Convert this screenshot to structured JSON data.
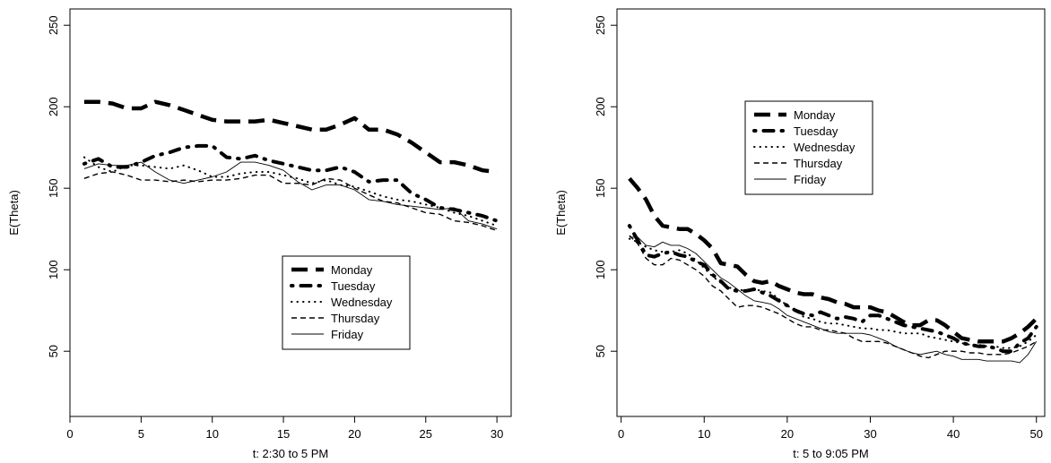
{
  "chart_data": [
    {
      "type": "line",
      "title": "",
      "xlabel": "t: 2:30 to 5 PM",
      "ylabel": "E(Theta)",
      "xlim": [
        0,
        31
      ],
      "ylim": [
        10,
        260
      ],
      "xticks": [
        0,
        5,
        10,
        15,
        20,
        25,
        30
      ],
      "yticks": [
        50,
        100,
        150,
        200,
        250
      ],
      "grid": false,
      "legend_position": "bottom-right",
      "series": [
        {
          "name": "Monday",
          "style": "longdash-thick",
          "x": [
            1,
            2,
            3,
            4,
            5,
            6,
            7,
            8,
            9,
            10,
            11,
            12,
            13,
            14,
            15,
            16,
            17,
            18,
            19,
            20,
            21,
            22,
            23,
            24,
            25,
            26,
            27,
            28,
            29,
            30
          ],
          "y": [
            203,
            203,
            202,
            199,
            199,
            203,
            201,
            198,
            195,
            192,
            191,
            191,
            191,
            192,
            190,
            188,
            186,
            186,
            189,
            193,
            186,
            186,
            183,
            178,
            172,
            166,
            166,
            164,
            161,
            160
          ]
        },
        {
          "name": "Tuesday",
          "style": "dotdash-thick",
          "x": [
            1,
            2,
            3,
            4,
            5,
            6,
            7,
            8,
            9,
            10,
            11,
            12,
            13,
            14,
            15,
            16,
            17,
            18,
            19,
            20,
            21,
            22,
            23,
            24,
            25,
            26,
            27,
            28,
            29,
            30
          ],
          "y": [
            165,
            168,
            163,
            163,
            166,
            170,
            172,
            175,
            176,
            176,
            169,
            168,
            170,
            167,
            165,
            163,
            161,
            161,
            163,
            160,
            154,
            155,
            155,
            147,
            143,
            138,
            137,
            135,
            133,
            130
          ]
        },
        {
          "name": "Wednesday",
          "style": "dotted",
          "x": [
            1,
            2,
            3,
            4,
            5,
            6,
            7,
            8,
            9,
            10,
            11,
            12,
            13,
            14,
            15,
            16,
            17,
            18,
            19,
            20,
            21,
            22,
            23,
            24,
            25,
            26,
            27,
            28,
            29,
            30
          ],
          "y": [
            169,
            163,
            160,
            164,
            164,
            163,
            162,
            164,
            161,
            157,
            157,
            159,
            160,
            160,
            158,
            156,
            153,
            155,
            152,
            151,
            148,
            145,
            143,
            142,
            140,
            138,
            135,
            133,
            130,
            127
          ]
        },
        {
          "name": "Thursday",
          "style": "dashed",
          "x": [
            1,
            2,
            3,
            4,
            5,
            6,
            7,
            8,
            9,
            10,
            11,
            12,
            13,
            14,
            15,
            16,
            17,
            18,
            19,
            20,
            21,
            22,
            23,
            24,
            25,
            26,
            27,
            28,
            29,
            30
          ],
          "y": [
            156,
            159,
            160,
            158,
            155,
            155,
            154,
            155,
            154,
            155,
            155,
            156,
            158,
            158,
            153,
            153,
            152,
            156,
            155,
            150,
            146,
            142,
            141,
            138,
            135,
            134,
            130,
            129,
            127,
            124
          ]
        },
        {
          "name": "Friday",
          "style": "solid-thin",
          "x": [
            1,
            2,
            3,
            4,
            5,
            6,
            7,
            8,
            9,
            10,
            11,
            12,
            13,
            14,
            15,
            16,
            17,
            18,
            19,
            20,
            21,
            22,
            23,
            24,
            25,
            26,
            27,
            28,
            29,
            30
          ],
          "y": [
            162,
            165,
            164,
            164,
            166,
            160,
            155,
            153,
            155,
            157,
            160,
            166,
            166,
            164,
            161,
            154,
            149,
            152,
            152,
            149,
            143,
            142,
            140,
            139,
            138,
            137,
            138,
            130,
            128,
            125
          ]
        }
      ]
    },
    {
      "type": "line",
      "title": "",
      "xlabel": "t: 5 to 9:05 PM",
      "ylabel": "E(Theta)",
      "xlim": [
        -0.5,
        51
      ],
      "ylim": [
        10,
        260
      ],
      "xticks": [
        0,
        10,
        20,
        30,
        40,
        50
      ],
      "yticks": [
        50,
        100,
        150,
        200,
        250
      ],
      "grid": false,
      "legend_position": "top-left",
      "series": [
        {
          "name": "Monday",
          "style": "longdash-thick",
          "x": [
            1,
            2,
            3,
            4,
            5,
            6,
            7,
            8,
            9,
            10,
            11,
            12,
            13,
            14,
            15,
            16,
            17,
            18,
            19,
            20,
            21,
            22,
            23,
            24,
            25,
            26,
            27,
            28,
            29,
            30,
            31,
            32,
            33,
            34,
            35,
            36,
            37,
            38,
            39,
            40,
            41,
            42,
            43,
            44,
            45,
            46,
            47,
            48,
            49,
            50
          ],
          "y": [
            156,
            150,
            143,
            133,
            127,
            126,
            125,
            125,
            122,
            118,
            113,
            104,
            103,
            102,
            97,
            93,
            92,
            93,
            90,
            88,
            86,
            85,
            85,
            83,
            82,
            80,
            79,
            77,
            77,
            77,
            75,
            74,
            71,
            68,
            66,
            66,
            69,
            69,
            66,
            62,
            58,
            57,
            56,
            56,
            56,
            56,
            58,
            61,
            65,
            70
          ]
        },
        {
          "name": "Tuesday",
          "style": "dotdash-thick",
          "x": [
            1,
            2,
            3,
            4,
            5,
            6,
            7,
            8,
            9,
            10,
            11,
            12,
            13,
            14,
            15,
            16,
            17,
            18,
            19,
            20,
            21,
            22,
            23,
            24,
            25,
            26,
            27,
            28,
            29,
            30,
            31,
            32,
            33,
            34,
            35,
            36,
            37,
            38,
            39,
            40,
            41,
            42,
            43,
            44,
            45,
            46,
            47,
            48,
            49,
            50
          ],
          "y": [
            127,
            118,
            109,
            108,
            110,
            111,
            109,
            108,
            105,
            103,
            97,
            93,
            88,
            87,
            87,
            88,
            86,
            84,
            81,
            78,
            75,
            73,
            72,
            74,
            72,
            70,
            71,
            70,
            68,
            72,
            72,
            70,
            68,
            66,
            65,
            64,
            63,
            62,
            60,
            58,
            55,
            54,
            53,
            53,
            52,
            50,
            50,
            55,
            58,
            65
          ]
        },
        {
          "name": "Wednesday",
          "style": "dotted",
          "x": [
            1,
            2,
            3,
            4,
            5,
            6,
            7,
            8,
            9,
            10,
            11,
            12,
            13,
            14,
            15,
            16,
            17,
            18,
            19,
            20,
            21,
            22,
            23,
            24,
            25,
            26,
            27,
            28,
            29,
            30,
            31,
            32,
            33,
            34,
            35,
            36,
            37,
            38,
            39,
            40,
            41,
            42,
            43,
            44,
            45,
            46,
            47,
            48,
            49,
            50
          ],
          "y": [
            119,
            117,
            114,
            112,
            111,
            111,
            112,
            110,
            106,
            101,
            96,
            92,
            89,
            88,
            87,
            88,
            87,
            86,
            82,
            78,
            75,
            71,
            70,
            68,
            67,
            67,
            66,
            65,
            64,
            64,
            63,
            63,
            62,
            61,
            61,
            61,
            59,
            58,
            57,
            56,
            55,
            54,
            54,
            53,
            53,
            52,
            52,
            53,
            56,
            60
          ]
        },
        {
          "name": "Thursday",
          "style": "dashed",
          "x": [
            1,
            2,
            3,
            4,
            5,
            6,
            7,
            8,
            9,
            10,
            11,
            12,
            13,
            14,
            15,
            16,
            17,
            18,
            19,
            20,
            21,
            22,
            23,
            24,
            25,
            26,
            27,
            28,
            29,
            30,
            31,
            32,
            33,
            34,
            35,
            36,
            37,
            38,
            39,
            40,
            41,
            42,
            43,
            44,
            45,
            46,
            47,
            48,
            49,
            50
          ],
          "y": [
            121,
            116,
            107,
            103,
            103,
            107,
            106,
            103,
            100,
            96,
            90,
            87,
            82,
            77,
            78,
            78,
            77,
            75,
            73,
            70,
            67,
            65,
            65,
            63,
            63,
            62,
            61,
            58,
            56,
            56,
            56,
            55,
            53,
            51,
            49,
            47,
            46,
            48,
            50,
            50,
            50,
            49,
            49,
            48,
            48,
            48,
            49,
            51,
            53,
            56
          ]
        },
        {
          "name": "Friday",
          "style": "solid-thin",
          "x": [
            1,
            2,
            3,
            4,
            5,
            6,
            7,
            8,
            9,
            10,
            11,
            12,
            13,
            14,
            15,
            16,
            17,
            18,
            19,
            20,
            21,
            22,
            23,
            24,
            25,
            26,
            27,
            28,
            29,
            30,
            31,
            32,
            33,
            34,
            35,
            36,
            37,
            38,
            39,
            40,
            41,
            42,
            43,
            44,
            45,
            46,
            47,
            48,
            49,
            50
          ],
          "y": [
            120,
            120,
            115,
            114,
            117,
            115,
            115,
            113,
            110,
            105,
            100,
            95,
            92,
            88,
            84,
            81,
            80,
            79,
            76,
            72,
            70,
            68,
            66,
            64,
            62,
            61,
            61,
            61,
            61,
            60,
            58,
            56,
            53,
            51,
            49,
            48,
            49,
            50,
            48,
            47,
            45,
            45,
            45,
            44,
            44,
            44,
            44,
            43,
            48,
            56
          ]
        }
      ]
    }
  ]
}
